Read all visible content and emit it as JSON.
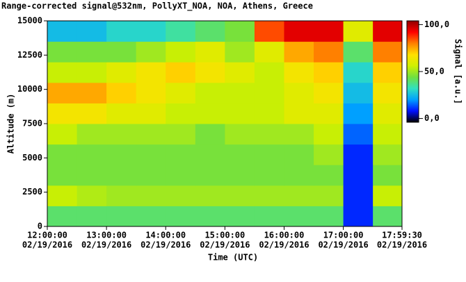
{
  "chart_data": {
    "type": "heatmap",
    "title": "Range-corrected signal@532nm, PollyXT_NOA, NOA, Athens, Greece",
    "xlabel": "Time (UTC)",
    "ylabel": "Altitude (m)",
    "colorbar_label": "Signal [a.u.]",
    "xlim": [
      12,
      17.991667
    ],
    "xticks": [
      {
        "value": 12,
        "label": "12:00:00"
      },
      {
        "value": 13,
        "label": "13:00:00"
      },
      {
        "value": 14,
        "label": "14:00:00"
      },
      {
        "value": 15,
        "label": "15:00:00"
      },
      {
        "value": 16,
        "label": "16:00:00"
      },
      {
        "value": 17,
        "label": "17:00:00"
      },
      {
        "value": 17.991667,
        "label": "17:59:30"
      }
    ],
    "xtick_dates": [
      "02/19/2016",
      "02/19/2016",
      "02/19/2016",
      "02/19/2016",
      "02/19/2016",
      "02/19/2016",
      "02/19/2016"
    ],
    "ylim": [
      0,
      15000
    ],
    "yticks": [
      0,
      2500,
      5000,
      7500,
      10000,
      12500,
      15000
    ],
    "clim": [
      -4,
      104
    ],
    "cticks": [
      {
        "value": 0,
        "label": "0,0"
      },
      {
        "value": 50,
        "label": "50,0"
      },
      {
        "value": 100,
        "label": "100,0"
      }
    ],
    "colors": [
      "#000000",
      "#0010ff",
      "#00a0ff",
      "#30e0c0",
      "#70e040",
      "#d0f000",
      "#ffe000",
      "#ff8000",
      "#ff0000",
      "#900000"
    ],
    "xbins": [
      12,
      12.5,
      13,
      13.5,
      14,
      14.5,
      15,
      15.5,
      16,
      16.5,
      17,
      17.5,
      17.991667
    ],
    "ybins": [
      0,
      1500,
      3000,
      4500,
      6000,
      7500,
      9000,
      10500,
      12000,
      13500,
      15000
    ],
    "z": [
      [
        40,
        40,
        40,
        40,
        40,
        40,
        40,
        40,
        40,
        40,
        10,
        40
      ],
      [
        55,
        52,
        50,
        50,
        50,
        50,
        50,
        50,
        50,
        50,
        10,
        55
      ],
      [
        45,
        45,
        45,
        45,
        45,
        45,
        45,
        45,
        45,
        45,
        10,
        45
      ],
      [
        45,
        45,
        45,
        45,
        45,
        45,
        45,
        45,
        45,
        50,
        10,
        50
      ],
      [
        55,
        50,
        50,
        50,
        50,
        45,
        50,
        50,
        50,
        55,
        15,
        55
      ],
      [
        65,
        65,
        60,
        60,
        55,
        55,
        55,
        55,
        60,
        60,
        20,
        60
      ],
      [
        75,
        75,
        70,
        65,
        60,
        55,
        55,
        55,
        60,
        65,
        25,
        65
      ],
      [
        55,
        55,
        60,
        65,
        70,
        65,
        60,
        55,
        65,
        70,
        30,
        70
      ],
      [
        45,
        45,
        45,
        50,
        55,
        60,
        50,
        60,
        75,
        80,
        40,
        80
      ],
      [
        25,
        25,
        30,
        30,
        35,
        40,
        45,
        85,
        95,
        95,
        60,
        95
      ]
    ]
  }
}
